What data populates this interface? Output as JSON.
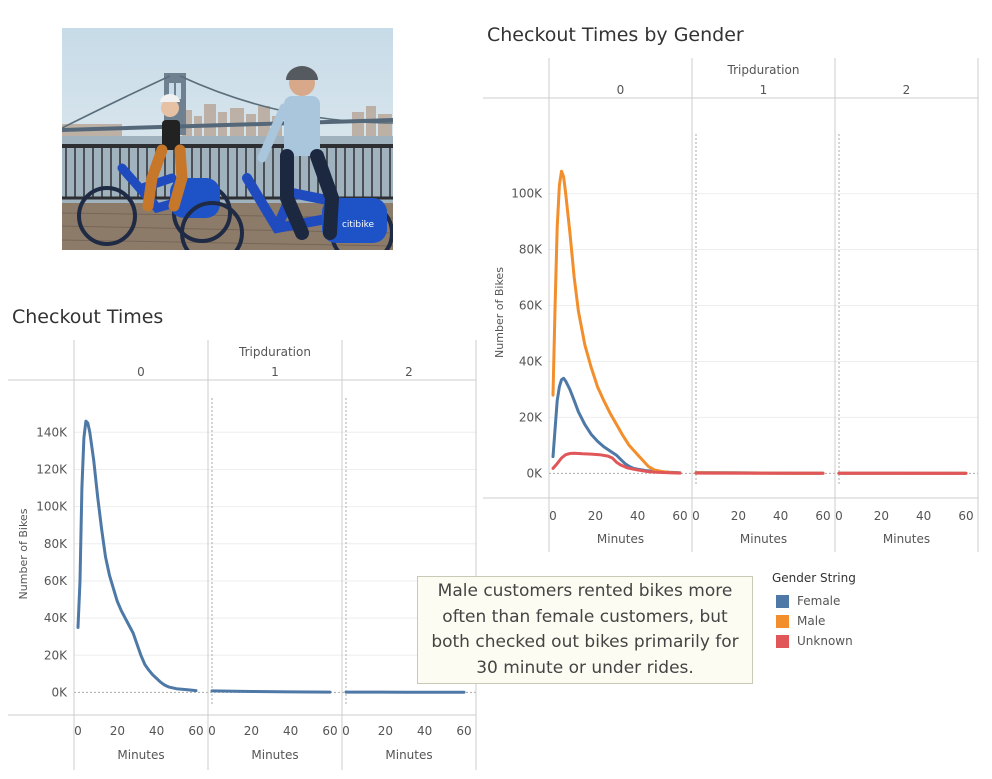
{
  "charts": {
    "left": {
      "title": "Checkout Times"
    },
    "right": {
      "title": "Checkout Times by Gender"
    }
  },
  "photo": {
    "decal_text": "citibike"
  },
  "caption": {
    "lines": [
      "Male customers rented bikes more",
      "often than female customers, but",
      "both checked out bikes primarily for",
      "30 minute or under rides."
    ]
  },
  "legend": {
    "title": "Gender String",
    "items": [
      {
        "label": "Female",
        "color": "#4e79a7"
      },
      {
        "label": "Male",
        "color": "#f28e2b"
      },
      {
        "label": "Unknown",
        "color": "#e15759"
      }
    ]
  },
  "chart_data": [
    {
      "type": "line",
      "title": "Checkout Times",
      "column_header": "Tripduration",
      "panels": [
        "0",
        "1",
        "2"
      ],
      "xlabel": "Minutes",
      "ylabel": "Number of Bikes",
      "x_ticks": [
        0,
        20,
        40,
        60
      ],
      "xlim": [
        0,
        60
      ],
      "y_ticks": [
        0,
        20000,
        40000,
        60000,
        80000,
        100000,
        120000,
        140000
      ],
      "y_tick_labels": [
        "0K",
        "20K",
        "40K",
        "60K",
        "80K",
        "100K",
        "120K",
        "140K"
      ],
      "ylim": [
        -3000,
        152000
      ],
      "grid": true,
      "series": [
        {
          "color": "#4e79a7",
          "panels": [
            [
              [
                0,
                35000
              ],
              [
                1,
                60000
              ],
              [
                2,
                110000
              ],
              [
                3,
                137000
              ],
              [
                4,
                146000
              ],
              [
                5,
                145000
              ],
              [
                6,
                140000
              ],
              [
                8,
                125000
              ],
              [
                10,
                105000
              ],
              [
                12,
                88000
              ],
              [
                14,
                73000
              ],
              [
                16,
                63000
              ],
              [
                18,
                56000
              ],
              [
                20,
                49000
              ],
              [
                22,
                44000
              ],
              [
                24,
                40000
              ],
              [
                26,
                36000
              ],
              [
                28,
                32000
              ],
              [
                30,
                26000
              ],
              [
                32,
                20000
              ],
              [
                34,
                15000
              ],
              [
                36,
                12000
              ],
              [
                38,
                9500
              ],
              [
                40,
                7500
              ],
              [
                42,
                5500
              ],
              [
                44,
                4000
              ],
              [
                46,
                3000
              ],
              [
                48,
                2500
              ],
              [
                50,
                2000
              ],
              [
                55,
                1500
              ],
              [
                60,
                1000
              ]
            ],
            [
              [
                0,
                800
              ],
              [
                20,
                500
              ],
              [
                40,
                300
              ],
              [
                60,
                200
              ]
            ],
            [
              [
                0,
                200
              ],
              [
                30,
                100
              ],
              [
                60,
                80
              ]
            ]
          ]
        }
      ]
    },
    {
      "type": "line",
      "title": "Checkout Times by Gender",
      "column_header": "Tripduration",
      "panels": [
        "0",
        "1",
        "2"
      ],
      "xlabel": "Minutes",
      "ylabel": "Number of Bikes",
      "x_ticks": [
        0,
        20,
        40,
        60
      ],
      "xlim": [
        0,
        60
      ],
      "y_ticks": [
        0,
        20000,
        40000,
        60000,
        80000,
        100000
      ],
      "y_tick_labels": [
        "0K",
        "20K",
        "40K",
        "60K",
        "80K",
        "100K"
      ],
      "ylim": [
        -2000,
        117000
      ],
      "grid": true,
      "legend_position": "bottom-right",
      "series": [
        {
          "name": "Female",
          "color": "#4e79a7",
          "panels": [
            [
              [
                0,
                6000
              ],
              [
                1,
                16000
              ],
              [
                2,
                26000
              ],
              [
                3,
                31000
              ],
              [
                4,
                33500
              ],
              [
                5,
                34000
              ],
              [
                6,
                33000
              ],
              [
                8,
                30000
              ],
              [
                10,
                26000
              ],
              [
                12,
                22000
              ],
              [
                15,
                17500
              ],
              [
                18,
                14000
              ],
              [
                21,
                11500
              ],
              [
                24,
                9500
              ],
              [
                27,
                8000
              ],
              [
                30,
                6500
              ],
              [
                32,
                5000
              ],
              [
                34,
                3500
              ],
              [
                36,
                2500
              ],
              [
                38,
                1800
              ],
              [
                40,
                1500
              ],
              [
                44,
                1000
              ],
              [
                48,
                700
              ],
              [
                55,
                400
              ],
              [
                60,
                250
              ]
            ],
            [
              [
                0,
                300
              ],
              [
                20,
                200
              ],
              [
                40,
                100
              ],
              [
                60,
                80
              ]
            ],
            [
              [
                0,
                80
              ],
              [
                30,
                60
              ],
              [
                60,
                50
              ]
            ]
          ]
        },
        {
          "name": "Male",
          "color": "#f28e2b",
          "panels": [
            [
              [
                0,
                28000
              ],
              [
                1,
                60000
              ],
              [
                2,
                88000
              ],
              [
                3,
                103000
              ],
              [
                4,
                108000
              ],
              [
                5,
                106000
              ],
              [
                6,
                100000
              ],
              [
                8,
                86000
              ],
              [
                10,
                70000
              ],
              [
                12,
                58000
              ],
              [
                15,
                46000
              ],
              [
                18,
                38000
              ],
              [
                21,
                31000
              ],
              [
                24,
                26000
              ],
              [
                27,
                21500
              ],
              [
                30,
                17500
              ],
              [
                33,
                13500
              ],
              [
                36,
                10000
              ],
              [
                39,
                7500
              ],
              [
                42,
                5000
              ],
              [
                45,
                2500
              ],
              [
                48,
                1200
              ],
              [
                52,
                600
              ],
              [
                56,
                300
              ],
              [
                60,
                150
              ]
            ],
            [
              [
                0,
                250
              ],
              [
                20,
                150
              ],
              [
                40,
                80
              ],
              [
                60,
                50
              ]
            ],
            [
              [
                0,
                50
              ],
              [
                30,
                40
              ],
              [
                60,
                30
              ]
            ]
          ]
        },
        {
          "name": "Unknown",
          "color": "#e15759",
          "panels": [
            [
              [
                0,
                1800
              ],
              [
                2,
                3500
              ],
              [
                4,
                5500
              ],
              [
                6,
                6700
              ],
              [
                8,
                7100
              ],
              [
                10,
                7200
              ],
              [
                14,
                7000
              ],
              [
                18,
                6900
              ],
              [
                22,
                6700
              ],
              [
                26,
                6200
              ],
              [
                28,
                5500
              ],
              [
                30,
                4000
              ],
              [
                32,
                3000
              ],
              [
                35,
                2000
              ],
              [
                38,
                1500
              ],
              [
                42,
                1000
              ],
              [
                45,
                600
              ],
              [
                50,
                350
              ],
              [
                55,
                200
              ],
              [
                60,
                100
              ]
            ],
            [
              [
                0,
                100
              ],
              [
                30,
                60
              ],
              [
                60,
                40
              ]
            ],
            [
              [
                0,
                30
              ],
              [
                30,
                20
              ],
              [
                60,
                15
              ]
            ]
          ]
        }
      ]
    }
  ]
}
